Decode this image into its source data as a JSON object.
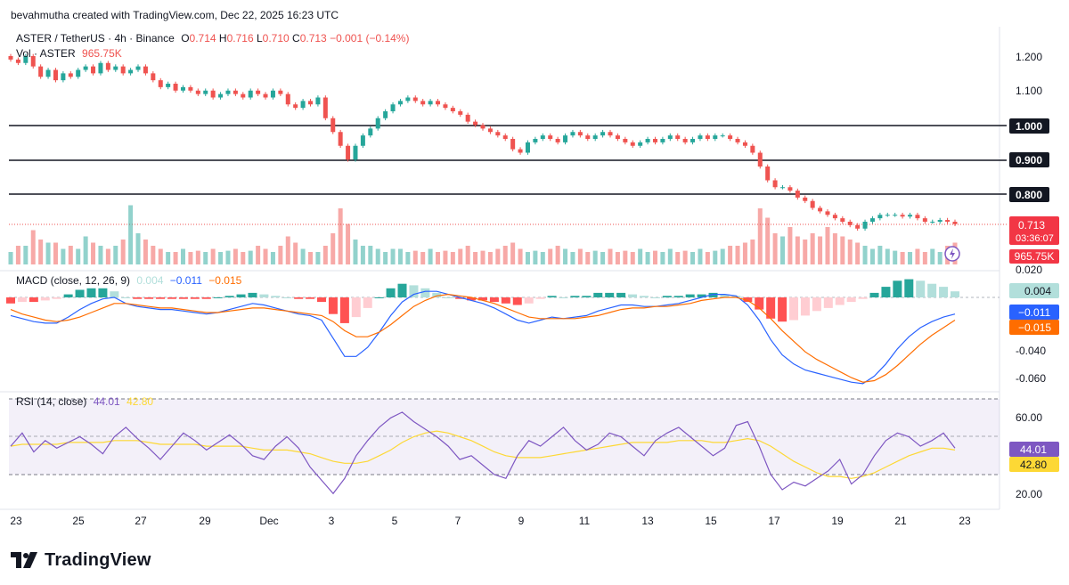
{
  "attribution": "bevahmutha created with TradingView.com, Dec 22, 2025 16:23 UTC",
  "legend": {
    "symbol": "ASTER / TetherUS · 4h · Binance",
    "o_label": "O",
    "o": "0.714",
    "h_label": "H",
    "h": "0.716",
    "l_label": "L",
    "l": "0.710",
    "c_label": "C",
    "c": "0.713",
    "change": "−0.001 (−0.14%)",
    "vol_label": "Vol · ASTER",
    "vol": "965.75K"
  },
  "macd_legend": {
    "label": "MACD (close, 12, 26, 9)",
    "hist": "0.004",
    "macd": "−0.011",
    "signal": "−0.015"
  },
  "rsi_legend": {
    "label": "RSI (14, close)",
    "rsi": "44.01",
    "ma": "42.80"
  },
  "badges": {
    "price": "0.713",
    "countdown": "03:36:07",
    "volume": "965.75K",
    "hist": "0.004",
    "macd": "−0.011",
    "signal": "−0.015",
    "rsi": "44.01",
    "rsi_ma": "42.80",
    "level_1000": "1.000",
    "level_0900": "0.900",
    "level_0800": "0.800"
  },
  "watermark": "TradingView",
  "colors": {
    "up": "#26a69a",
    "down": "#ef5350",
    "macd_line": "#2962ff",
    "signal_line": "#ff6d00",
    "rsi_line": "#7e57c2",
    "rsi_ma": "#fdd835",
    "hline": "#131722",
    "grid_text": "#131722"
  },
  "chart_data": [
    {
      "type": "candlestick",
      "title": "ASTER / TetherUS · 4h · Binance",
      "x_tick_labels": [
        "23",
        "25",
        "27",
        "29",
        "Dec",
        "3",
        "5",
        "7",
        "9",
        "11",
        "13",
        "15",
        "17",
        "19",
        "21",
        "23"
      ],
      "y_ticks": [
        "1.200",
        "1.100",
        "1.000",
        "0.900",
        "0.800"
      ],
      "ylim": [
        0.725,
        1.225
      ],
      "horizontal_levels": [
        1.0,
        0.9,
        0.8
      ],
      "last_price": 0.713,
      "closes": [
        1.19,
        1.18,
        1.2,
        1.17,
        1.14,
        1.16,
        1.13,
        1.15,
        1.14,
        1.16,
        1.17,
        1.15,
        1.18,
        1.16,
        1.17,
        1.15,
        1.16,
        1.17,
        1.15,
        1.13,
        1.11,
        1.12,
        1.1,
        1.11,
        1.1,
        1.09,
        1.1,
        1.08,
        1.09,
        1.1,
        1.09,
        1.08,
        1.1,
        1.09,
        1.08,
        1.1,
        1.09,
        1.06,
        1.05,
        1.07,
        1.06,
        1.08,
        1.02,
        0.98,
        0.94,
        0.9,
        0.94,
        0.97,
        0.99,
        1.02,
        1.04,
        1.06,
        1.07,
        1.08,
        1.07,
        1.06,
        1.07,
        1.06,
        1.05,
        1.04,
        1.03,
        1.01,
        1.0,
        0.99,
        0.98,
        0.97,
        0.96,
        0.93,
        0.92,
        0.95,
        0.96,
        0.97,
        0.96,
        0.95,
        0.97,
        0.98,
        0.97,
        0.96,
        0.97,
        0.98,
        0.97,
        0.96,
        0.95,
        0.94,
        0.95,
        0.96,
        0.95,
        0.96,
        0.97,
        0.96,
        0.95,
        0.96,
        0.97,
        0.96,
        0.97,
        0.97,
        0.96,
        0.95,
        0.94,
        0.92,
        0.88,
        0.84,
        0.82,
        0.82,
        0.81,
        0.79,
        0.78,
        0.76,
        0.75,
        0.74,
        0.73,
        0.72,
        0.71,
        0.7,
        0.72,
        0.73,
        0.74,
        0.74,
        0.74,
        0.735,
        0.74,
        0.73,
        0.72,
        0.72,
        0.725,
        0.72,
        0.713
      ]
    },
    {
      "type": "bar",
      "title": "Vol · ASTER",
      "values_relative": [
        0.2,
        0.3,
        0.3,
        0.55,
        0.4,
        0.35,
        0.35,
        0.25,
        0.3,
        0.25,
        0.45,
        0.35,
        0.3,
        0.25,
        0.3,
        0.4,
        0.95,
        0.5,
        0.4,
        0.3,
        0.25,
        0.2,
        0.2,
        0.25,
        0.2,
        0.22,
        0.2,
        0.25,
        0.2,
        0.22,
        0.25,
        0.2,
        0.22,
        0.3,
        0.25,
        0.2,
        0.3,
        0.45,
        0.35,
        0.25,
        0.2,
        0.2,
        0.3,
        0.5,
        0.9,
        0.65,
        0.4,
        0.3,
        0.3,
        0.25,
        0.2,
        0.25,
        0.25,
        0.2,
        0.22,
        0.2,
        0.25,
        0.2,
        0.22,
        0.2,
        0.25,
        0.3,
        0.2,
        0.22,
        0.2,
        0.25,
        0.3,
        0.35,
        0.25,
        0.2,
        0.22,
        0.2,
        0.25,
        0.3,
        0.25,
        0.2,
        0.25,
        0.2,
        0.22,
        0.2,
        0.25,
        0.2,
        0.22,
        0.2,
        0.25,
        0.2,
        0.22,
        0.2,
        0.25,
        0.2,
        0.22,
        0.2,
        0.25,
        0.2,
        0.22,
        0.25,
        0.3,
        0.3,
        0.35,
        0.4,
        0.9,
        0.75,
        0.5,
        0.45,
        0.6,
        0.45,
        0.4,
        0.5,
        0.45,
        0.6,
        0.5,
        0.45,
        0.4,
        0.35,
        0.3,
        0.25,
        0.3,
        0.25,
        0.22,
        0.2,
        0.2,
        0.25,
        0.2,
        0.25,
        0.2,
        0.3,
        0.35
      ],
      "last": "965.75K"
    },
    {
      "type": "line",
      "title": "MACD (close, 12, 26, 9)",
      "y_ticks": [
        "0.020",
        "-0.040",
        "-0.060"
      ],
      "ylim": [
        -0.063,
        0.021
      ],
      "series": [
        {
          "name": "MACD",
          "values": [
            -0.012,
            -0.014,
            -0.016,
            -0.017,
            -0.017,
            -0.013,
            -0.008,
            -0.004,
            -0.001,
            0.0,
            -0.004,
            -0.006,
            -0.007,
            -0.008,
            -0.008,
            -0.009,
            -0.01,
            -0.011,
            -0.01,
            -0.008,
            -0.006,
            -0.004,
            -0.005,
            -0.007,
            -0.009,
            -0.011,
            -0.012,
            -0.015,
            -0.027,
            -0.039,
            -0.039,
            -0.033,
            -0.023,
            -0.012,
            -0.003,
            0.002,
            0.004,
            0.004,
            0.002,
            0.0,
            -0.002,
            -0.004,
            -0.007,
            -0.011,
            -0.015,
            -0.017,
            -0.015,
            -0.013,
            -0.014,
            -0.013,
            -0.012,
            -0.009,
            -0.007,
            -0.005,
            -0.005,
            -0.006,
            -0.006,
            -0.005,
            -0.004,
            -0.002,
            0.0,
            0.002,
            0.002,
            0.001,
            -0.005,
            -0.015,
            -0.028,
            -0.038,
            -0.044,
            -0.048,
            -0.05,
            -0.052,
            -0.054,
            -0.056,
            -0.057,
            -0.052,
            -0.044,
            -0.034,
            -0.026,
            -0.02,
            -0.016,
            -0.013,
            -0.011
          ]
        },
        {
          "name": "Signal",
          "values": [
            -0.008,
            -0.011,
            -0.013,
            -0.015,
            -0.016,
            -0.015,
            -0.013,
            -0.01,
            -0.007,
            -0.004,
            -0.004,
            -0.005,
            -0.006,
            -0.007,
            -0.007,
            -0.008,
            -0.009,
            -0.01,
            -0.01,
            -0.009,
            -0.008,
            -0.007,
            -0.007,
            -0.008,
            -0.009,
            -0.01,
            -0.011,
            -0.012,
            -0.016,
            -0.022,
            -0.026,
            -0.026,
            -0.023,
            -0.018,
            -0.012,
            -0.006,
            -0.002,
            0.001,
            0.002,
            0.001,
            0.0,
            -0.002,
            -0.004,
            -0.007,
            -0.01,
            -0.013,
            -0.014,
            -0.014,
            -0.014,
            -0.014,
            -0.013,
            -0.012,
            -0.01,
            -0.008,
            -0.007,
            -0.007,
            -0.006,
            -0.006,
            -0.005,
            -0.004,
            -0.002,
            -0.001,
            0.0,
            0.0,
            -0.002,
            -0.007,
            -0.014,
            -0.022,
            -0.029,
            -0.036,
            -0.041,
            -0.045,
            -0.049,
            -0.053,
            -0.056,
            -0.055,
            -0.051,
            -0.045,
            -0.038,
            -0.031,
            -0.025,
            -0.02,
            -0.015
          ]
        },
        {
          "name": "Histogram",
          "values": [
            -0.004,
            -0.003,
            -0.003,
            -0.002,
            -0.001,
            0.002,
            0.005,
            0.006,
            0.006,
            0.004,
            0.0,
            -0.001,
            -0.001,
            -0.001,
            -0.001,
            -0.001,
            -0.001,
            -0.001,
            0.0,
            0.001,
            0.002,
            0.003,
            0.002,
            0.001,
            0.0,
            -0.001,
            -0.001,
            -0.003,
            -0.011,
            -0.017,
            -0.013,
            -0.007,
            0.0,
            0.006,
            0.009,
            0.008,
            0.006,
            0.003,
            0.0,
            -0.001,
            -0.002,
            -0.002,
            -0.003,
            -0.004,
            -0.005,
            -0.004,
            -0.001,
            0.001,
            0.0,
            0.001,
            0.001,
            0.003,
            0.003,
            0.003,
            0.002,
            0.001,
            0.0,
            0.001,
            0.001,
            0.002,
            0.002,
            0.003,
            0.002,
            0.001,
            -0.003,
            -0.008,
            -0.014,
            -0.016,
            -0.015,
            -0.012,
            -0.009,
            -0.007,
            -0.005,
            -0.003,
            -0.001,
            0.003,
            0.007,
            0.011,
            0.012,
            0.011,
            0.009,
            0.007,
            0.004
          ]
        }
      ]
    },
    {
      "type": "line",
      "title": "RSI (14, close)",
      "y_ticks": [
        "60.00",
        "20.00"
      ],
      "ylim": [
        15,
        72
      ],
      "bands": [
        70,
        50,
        30
      ],
      "series": [
        {
          "name": "RSI",
          "values": [
            45,
            52,
            42,
            48,
            44,
            47,
            50,
            46,
            41,
            50,
            55,
            49,
            44,
            38,
            45,
            52,
            48,
            43,
            47,
            51,
            46,
            40,
            38,
            45,
            50,
            44,
            34,
            27,
            20,
            28,
            40,
            48,
            55,
            60,
            63,
            58,
            54,
            50,
            45,
            38,
            40,
            35,
            30,
            28,
            40,
            48,
            45,
            50,
            55,
            48,
            43,
            46,
            52,
            50,
            45,
            40,
            48,
            52,
            55,
            50,
            45,
            40,
            44,
            56,
            58,
            45,
            30,
            22,
            26,
            24,
            28,
            32,
            38,
            25,
            30,
            40,
            48,
            52,
            50,
            45,
            48,
            52,
            44
          ]
        },
        {
          "name": "RSI MA",
          "values": [
            45,
            46,
            46,
            46,
            46,
            47,
            47,
            47,
            47,
            48,
            48,
            48,
            47,
            46,
            46,
            46,
            46,
            45,
            45,
            45,
            45,
            44,
            43,
            43,
            43,
            42,
            41,
            39,
            37,
            36,
            36,
            37,
            40,
            43,
            47,
            50,
            52,
            53,
            52,
            50,
            48,
            45,
            42,
            40,
            39,
            39,
            39,
            40,
            41,
            42,
            43,
            44,
            45,
            46,
            47,
            47,
            47,
            47,
            48,
            48,
            48,
            47,
            47,
            48,
            49,
            48,
            45,
            41,
            37,
            34,
            31,
            29,
            29,
            28,
            29,
            31,
            34,
            37,
            40,
            42,
            44,
            44,
            43
          ]
        }
      ]
    }
  ]
}
